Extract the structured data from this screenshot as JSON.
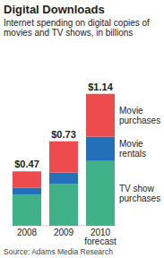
{
  "chart_data": {
    "type": "bar",
    "stacked": true,
    "tick_labels": "x",
    "title": "Digital Downloads",
    "subtitle": "Internet spending on digital copies of movies and TV shows, in billions",
    "source": "Source: Adams Media Research",
    "categories": [
      "2008",
      "2009",
      "2010 forecast"
    ],
    "series": [
      {
        "name": "TV show purchases",
        "color": "#40b088",
        "values": [
          0.27,
          0.36,
          0.56
        ]
      },
      {
        "name": "Movie rentals",
        "color": "#2470b8",
        "values": [
          0.06,
          0.1,
          0.21
        ]
      },
      {
        "name": "Movie purchases",
        "color": "#ee4b4e",
        "values": [
          0.14,
          0.27,
          0.37
        ]
      }
    ],
    "totals": [
      0.47,
      0.73,
      1.14
    ],
    "total_labels": [
      "$0.47",
      "$0.73",
      "$1.14"
    ],
    "ylim": [
      0,
      1.2
    ]
  }
}
